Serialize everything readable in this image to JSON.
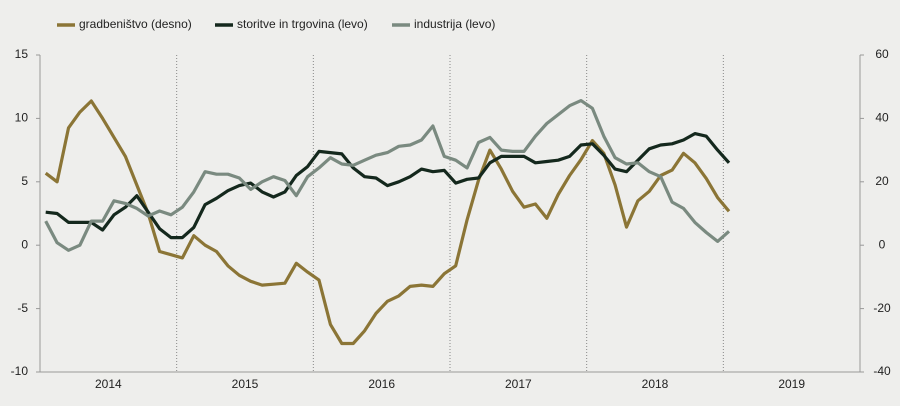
{
  "chart_data": {
    "type": "line",
    "categories": [
      null,
      null,
      null,
      null,
      null,
      null,
      "2014",
      null,
      null,
      null,
      null,
      null,
      null,
      null,
      null,
      null,
      null,
      null,
      "2015",
      null,
      null,
      null,
      null,
      null,
      null,
      null,
      null,
      null,
      null,
      null,
      "2016",
      null,
      null,
      null,
      null,
      null,
      null,
      null,
      null,
      null,
      null,
      null,
      "2017",
      null,
      null,
      null,
      null,
      null,
      null,
      null,
      null,
      null,
      null,
      null,
      "2018",
      null,
      null,
      null,
      null,
      null,
      null,
      null,
      null,
      null,
      null,
      null,
      "2019",
      null,
      null,
      null,
      null,
      null
    ],
    "series": [
      {
        "name": "gradbeništvo (desno)",
        "color": "#8b7536",
        "axis": "y2",
        "values": [
          22.7,
          20,
          37,
          42,
          45.5,
          40,
          34,
          28,
          19,
          10,
          -2,
          -3,
          -4,
          3,
          0,
          -2,
          -6.5,
          -9.5,
          -11.4,
          -12.6,
          -12.3,
          -12,
          -5.7,
          -8.5,
          -11,
          -25,
          -31,
          -31,
          -27,
          -21.5,
          -17.7,
          -16,
          -13,
          -12.6,
          -13,
          -9,
          -6.5,
          8,
          20.5,
          30,
          24,
          17,
          12,
          13,
          8.5,
          16,
          22,
          27,
          33,
          29,
          19,
          5.7,
          14,
          17,
          22,
          23.7,
          29,
          26,
          21,
          15,
          10.7,
          null,
          null,
          null,
          null,
          null,
          null,
          null,
          null,
          null,
          null,
          null
        ]
      },
      {
        "name": "storitve in trgovina (levo)",
        "color": "#14281d",
        "values": [
          2.6,
          2.5,
          1.8,
          1.8,
          1.8,
          1.2,
          2.4,
          3,
          3.9,
          2.6,
          1.3,
          0.6,
          0.6,
          1.4,
          3.2,
          3.7,
          4.3,
          4.7,
          4.9,
          4.2,
          3.8,
          4.2,
          5.5,
          6.2,
          7.4,
          7.3,
          7.2,
          6.1,
          5.4,
          5.3,
          4.7,
          5,
          5.4,
          6,
          5.8,
          5.9,
          4.9,
          5.2,
          5.3,
          6.5,
          7,
          7,
          7,
          6.5,
          6.6,
          6.7,
          7,
          7.9,
          8,
          7.1,
          6,
          5.8,
          6.7,
          7.6,
          7.9,
          8,
          8.3,
          8.8,
          8.6,
          7.5,
          6.5,
          null,
          null,
          null,
          null,
          null,
          null,
          null,
          null,
          null,
          null,
          null
        ]
      },
      {
        "name": "industrija (levo)",
        "color": "#7a8a80",
        "values": [
          1.9,
          0.2,
          -0.4,
          0,
          1.9,
          1.9,
          3.5,
          3.3,
          2.9,
          2.3,
          2.7,
          2.4,
          3,
          4.2,
          5.8,
          5.6,
          5.6,
          5.3,
          4.4,
          5,
          5.4,
          5.1,
          3.9,
          5.4,
          6.1,
          6.9,
          6.4,
          6.3,
          6.7,
          7.1,
          7.3,
          7.8,
          7.9,
          8.3,
          9.4,
          7,
          6.7,
          6.1,
          8.1,
          8.5,
          7.5,
          7.4,
          7.4,
          8.6,
          9.6,
          10.3,
          11,
          11.4,
          10.8,
          8.6,
          6.9,
          6.4,
          6.5,
          5.8,
          5.4,
          3.4,
          2.9,
          1.8,
          1,
          0.3,
          1.1,
          null,
          null,
          null,
          null,
          null,
          null,
          null,
          null,
          null,
          null,
          null
        ]
      }
    ],
    "ylim": [
      -10,
      15
    ],
    "yticks": [
      -10,
      -5,
      0,
      5,
      10,
      15
    ],
    "y2lim": [
      -40,
      60
    ],
    "y2ticks": [
      -40,
      -20,
      0,
      20,
      40,
      60
    ]
  }
}
